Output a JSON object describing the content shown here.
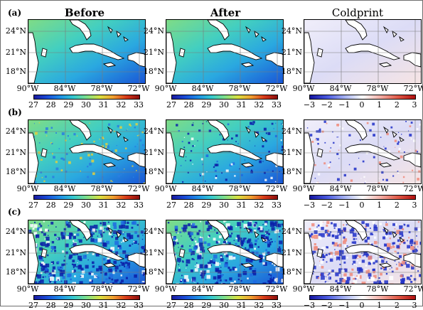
{
  "column_titles": [
    "Before",
    "After",
    "Coldprint"
  ],
  "row_labels": [
    "(a)",
    "(b)",
    "(c)"
  ],
  "lat_ticks": [
    "24°N",
    "21°N",
    "18°N"
  ],
  "lon_ticks": [
    "90°W",
    "84°W",
    "78°W",
    "72°W"
  ],
  "sst_colorbar": {
    "ticks": [
      "27",
      "28",
      "29",
      "30",
      "31",
      "32",
      "33"
    ],
    "colors": [
      "#1a1aa0",
      "#1a4cd8",
      "#1e90e6",
      "#35c9cf",
      "#7ee08a",
      "#d8e040",
      "#f0a030",
      "#d83a1a",
      "#8c0e0e"
    ]
  },
  "diff_colorbar": {
    "ticks": [
      "−3",
      "−2",
      "−1",
      "0",
      "1",
      "2",
      "3"
    ],
    "colors": [
      "#1515a0",
      "#4a5ae0",
      "#a7b3f2",
      "#ffffff",
      "#f3b0a8",
      "#e05a48",
      "#b01010"
    ]
  },
  "colors": {
    "land": "#ffffff",
    "coast": "#000000",
    "gridline": "#7a7a7a",
    "frame_border": "#6f6f6f"
  }
}
